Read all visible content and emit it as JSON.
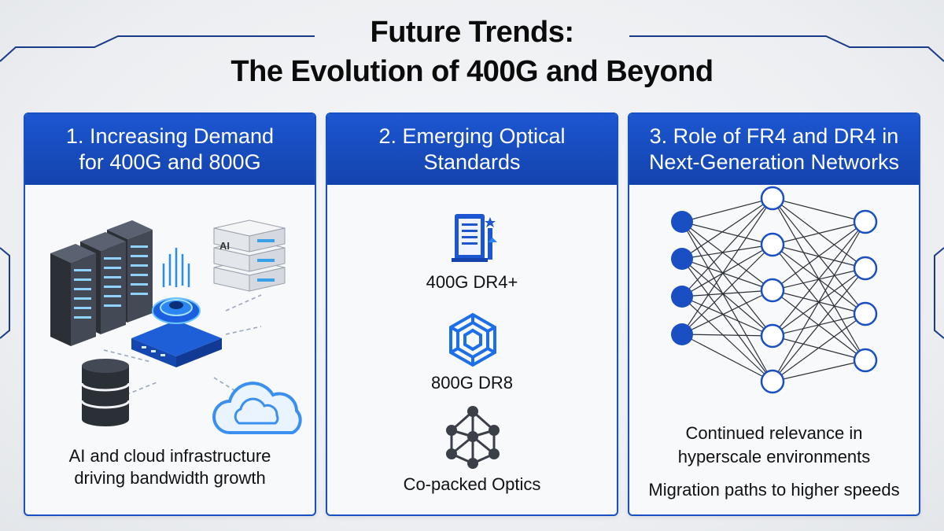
{
  "title": {
    "line1": "Future Trends:",
    "line2": "The Evolution of 400G and Beyond"
  },
  "panels": [
    {
      "heading_line1": "1. Increasing Demand",
      "heading_line2": "for 400G and 800G",
      "caption_line1": "AI and cloud infrastructure",
      "caption_line2": "driving bandwidth growth",
      "ai_label": "AI",
      "icons": [
        "server-rack-icon",
        "ai-appliance-icon",
        "network-switch-icon",
        "database-icon",
        "cloud-icon"
      ]
    },
    {
      "heading_line1": "2. Emerging Optical",
      "heading_line2": "Standards",
      "items": [
        {
          "label": "400G DR4+",
          "icon": "document-chart-icon"
        },
        {
          "label": "800G DR8",
          "icon": "hexagon-spiral-icon"
        },
        {
          "label": "Co-packed Optics",
          "icon": "node-network-icon"
        }
      ]
    },
    {
      "heading_line1": "3. Role of FR4 and DR4 in",
      "heading_line2": "Next-Generation Networks",
      "caption_line1": "Continued relevance in",
      "caption_line2": "hyperscale environments",
      "caption_line3": "Migration paths to higher speeds",
      "icons": [
        "neural-network-icon"
      ]
    }
  ],
  "colors": {
    "accent": "#1a4fc4",
    "header_bg": "#1c56d1",
    "deco_line": "#1a3a8a",
    "icon_blue": "#2a6cf0",
    "dark": "#2b2f36"
  }
}
